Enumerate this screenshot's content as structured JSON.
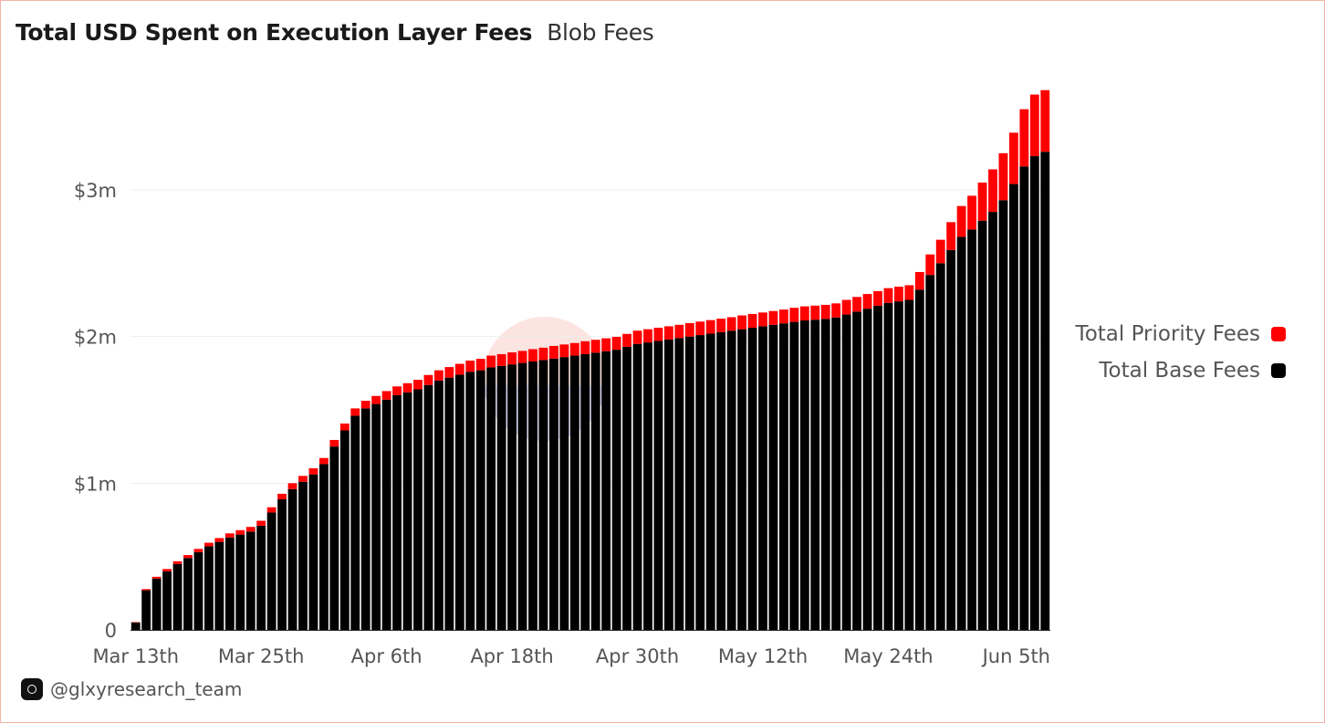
{
  "header": {
    "title": "Total USD Spent on Execution Layer Fees",
    "subtitle": "Blob Fees"
  },
  "footer": {
    "handle": "@glxyresearch_team",
    "logo_icon": "galaxy-logo-icon"
  },
  "colors": {
    "base": "#000000",
    "priority": "#ff0000",
    "grid": "#eeeeee",
    "watermark": "#f2a99a"
  },
  "chart_data": {
    "type": "bar",
    "stacked": true,
    "title": "Total USD Spent on Execution Layer Fees",
    "xlabel": "",
    "ylabel": "",
    "ylim": [
      0,
      3700000
    ],
    "y_ticks": [
      0,
      1000000,
      2000000,
      3000000
    ],
    "y_tick_labels": [
      "0",
      "$1m",
      "$2m",
      "$3m"
    ],
    "x_tick_labels": [
      "Mar 13th",
      "Mar 25th",
      "Apr 6th",
      "Apr 18th",
      "Apr 30th",
      "May 12th",
      "May 24th",
      "Jun 5th"
    ],
    "x_tick_positions": [
      0,
      12,
      24,
      36,
      48,
      60,
      72,
      84
    ],
    "grid": true,
    "legend_position": "right",
    "series": [
      {
        "name": "Total Base Fees",
        "color": "#000000",
        "values": [
          50000,
          270000,
          350000,
          400000,
          450000,
          490000,
          530000,
          570000,
          600000,
          630000,
          650000,
          670000,
          710000,
          800000,
          890000,
          960000,
          1010000,
          1060000,
          1130000,
          1250000,
          1360000,
          1460000,
          1510000,
          1540000,
          1570000,
          1600000,
          1620000,
          1640000,
          1670000,
          1700000,
          1720000,
          1740000,
          1760000,
          1770000,
          1790000,
          1800000,
          1810000,
          1820000,
          1830000,
          1840000,
          1850000,
          1860000,
          1870000,
          1880000,
          1890000,
          1900000,
          1910000,
          1930000,
          1950000,
          1960000,
          1970000,
          1980000,
          1990000,
          2000000,
          2010000,
          2020000,
          2030000,
          2040000,
          2050000,
          2060000,
          2070000,
          2080000,
          2090000,
          2100000,
          2110000,
          2115000,
          2120000,
          2130000,
          2150000,
          2170000,
          2190000,
          2210000,
          2230000,
          2240000,
          2250000,
          2320000,
          2420000,
          2500000,
          2590000,
          2680000,
          2730000,
          2790000,
          2850000,
          2930000,
          3040000,
          3160000,
          3230000,
          3260000
        ]
      },
      {
        "name": "Total Priority Fees",
        "color": "#ff0000",
        "values": [
          3000,
          8000,
          12000,
          15000,
          18000,
          20000,
          22000,
          24000,
          26000,
          28000,
          30000,
          32000,
          34000,
          36000,
          38000,
          40000,
          40000,
          42000,
          42000,
          45000,
          47000,
          50000,
          52000,
          55000,
          58000,
          60000,
          62000,
          65000,
          68000,
          70000,
          72000,
          74000,
          76000,
          78000,
          80000,
          80000,
          82000,
          82000,
          84000,
          84000,
          86000,
          86000,
          86000,
          88000,
          88000,
          88000,
          88000,
          88000,
          90000,
          90000,
          90000,
          90000,
          90000,
          92000,
          92000,
          92000,
          92000,
          92000,
          94000,
          94000,
          94000,
          94000,
          94000,
          96000,
          96000,
          96000,
          96000,
          96000,
          100000,
          100000,
          100000,
          100000,
          100000,
          100000,
          100000,
          120000,
          140000,
          160000,
          190000,
          210000,
          230000,
          260000,
          290000,
          320000,
          350000,
          390000,
          420000,
          420000
        ]
      }
    ]
  }
}
